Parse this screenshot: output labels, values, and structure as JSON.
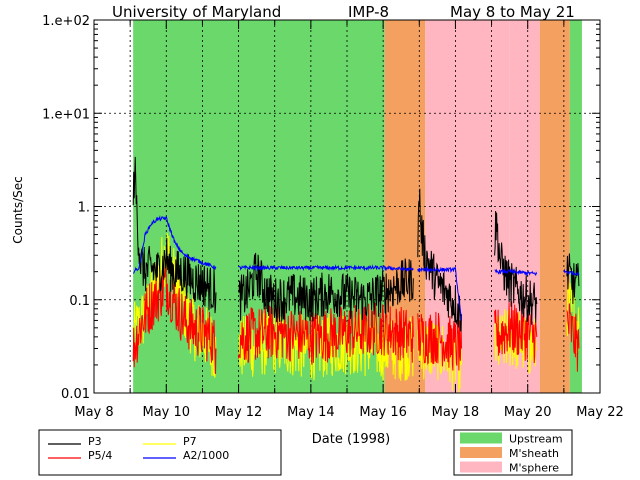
{
  "chart_data": {
    "type": "line",
    "title": {
      "left": "University of Maryland",
      "center": "IMP-8",
      "right": "May 8 to May 21"
    },
    "xlabel": "Date (1998)",
    "ylabel": "Counts/Sec",
    "y_scale": "log",
    "ylim": [
      0.01,
      100
    ],
    "y_ticks": [
      {
        "value": 100,
        "label": "1.e+02"
      },
      {
        "value": 10,
        "label": "1.e+01"
      },
      {
        "value": 1,
        "label": "1."
      },
      {
        "value": 0.1,
        "label": "0.1"
      },
      {
        "value": 0.01,
        "label": "0.01"
      }
    ],
    "xlim": [
      "1998-05-08",
      "1998-05-22"
    ],
    "x_ticks": [
      {
        "value": "1998-05-08",
        "label": "May 8"
      },
      {
        "value": "1998-05-10",
        "label": "May 10"
      },
      {
        "value": "1998-05-12",
        "label": "May 12"
      },
      {
        "value": "1998-05-14",
        "label": "May 14"
      },
      {
        "value": "1998-05-16",
        "label": "May 16"
      },
      {
        "value": "1998-05-18",
        "label": "May 18"
      },
      {
        "value": "1998-05-20",
        "label": "May 20"
      },
      {
        "value": "1998-05-22",
        "label": "May 22"
      }
    ],
    "grid": "dotted daily vertical lines and decade horizontal lines",
    "regions": [
      {
        "type": "Upstream",
        "start": "1998-05-09T02:00",
        "end": "1998-05-16T01:00"
      },
      {
        "type": "M'sheath",
        "start": "1998-05-16T01:00",
        "end": "1998-05-17T04:00"
      },
      {
        "type": "M'sphere",
        "start": "1998-05-17T04:00",
        "end": "1998-05-19T12:00"
      },
      {
        "type": "M'sphere",
        "start": "1998-05-19T12:00",
        "end": "1998-05-20T08:00"
      },
      {
        "type": "M'sheath",
        "start": "1998-05-20T08:00",
        "end": "1998-05-21T04:00"
      },
      {
        "type": "Upstream",
        "start": "1998-05-21T04:00",
        "end": "1998-05-21T12:00"
      }
    ],
    "series": [
      {
        "name": "P3",
        "color": "#000000",
        "segments": [
          [
            [
              "1998-05-09T02:00",
              1.2
            ],
            [
              "1998-05-09T03:00",
              2.6
            ],
            [
              "1998-05-09T05:00",
              0.6
            ],
            [
              "1998-05-09T07:00",
              0.25
            ],
            [
              "1998-05-09T10:00",
              0.2
            ],
            [
              "1998-05-09T14:00",
              0.22
            ],
            [
              "1998-05-09T18:00",
              0.2
            ],
            [
              "1998-05-09T22:00",
              0.24
            ],
            [
              "1998-05-10T00:00",
              0.3
            ],
            [
              "1998-05-10T02:00",
              0.22
            ],
            [
              "1998-05-10T06:00",
              0.2
            ],
            [
              "1998-05-10T12:00",
              0.19
            ],
            [
              "1998-05-10T18:00",
              0.16
            ],
            [
              "1998-05-11T00:00",
              0.15
            ],
            [
              "1998-05-11T06:00",
              0.13
            ],
            [
              "1998-05-11T09:00",
              0.12
            ]
          ],
          [
            [
              "1998-05-12T00:00",
              0.1
            ],
            [
              "1998-05-12T06:00",
              0.12
            ],
            [
              "1998-05-12T12:00",
              0.2
            ],
            [
              "1998-05-12T18:00",
              0.12
            ],
            [
              "1998-05-13T00:00",
              0.1
            ],
            [
              "1998-05-13T12:00",
              0.11
            ],
            [
              "1998-05-14T00:00",
              0.1
            ],
            [
              "1998-05-14T12:00",
              0.12
            ],
            [
              "1998-05-15T00:00",
              0.11
            ],
            [
              "1998-05-15T12:00",
              0.1
            ],
            [
              "1998-05-16T00:00",
              0.12
            ],
            [
              "1998-05-16T12:00",
              0.15
            ],
            [
              "1998-05-16T20:00",
              0.17
            ]
          ],
          [
            [
              "1998-05-16T23:00",
              0.3
            ],
            [
              "1998-05-17T00:00",
              1.6
            ],
            [
              "1998-05-17T01:00",
              0.6
            ],
            [
              "1998-05-17T04:00",
              0.3
            ],
            [
              "1998-05-17T12:00",
              0.15
            ],
            [
              "1998-05-17T18:00",
              0.12
            ],
            [
              "1998-05-18T00:00",
              0.09
            ],
            [
              "1998-05-18T04:00",
              0.07
            ]
          ],
          [
            [
              "1998-05-19T02:00",
              0.4
            ],
            [
              "1998-05-19T03:00",
              0.7
            ],
            [
              "1998-05-19T06:00",
              0.25
            ],
            [
              "1998-05-19T12:00",
              0.15
            ],
            [
              "1998-05-19T18:00",
              0.12
            ],
            [
              "1998-05-20T00:00",
              0.1
            ],
            [
              "1998-05-20T06:00",
              0.09
            ]
          ],
          [
            [
              "1998-05-21T02:00",
              0.2
            ],
            [
              "1998-05-21T06:00",
              0.15
            ],
            [
              "1998-05-21T10:00",
              0.14
            ]
          ]
        ]
      },
      {
        "name": "P5/4",
        "color": "#ff0000",
        "segments": [
          [
            [
              "1998-05-09T02:00",
              0.03
            ],
            [
              "1998-05-09T08:00",
              0.06
            ],
            [
              "1998-05-09T14:00",
              0.09
            ],
            [
              "1998-05-09T20:00",
              0.12
            ],
            [
              "1998-05-10T00:00",
              0.15
            ],
            [
              "1998-05-10T06:00",
              0.09
            ],
            [
              "1998-05-10T12:00",
              0.06
            ],
            [
              "1998-05-10T18:00",
              0.05
            ],
            [
              "1998-05-11T06:00",
              0.04
            ],
            [
              "1998-05-11T09:00",
              0.03
            ]
          ],
          [
            [
              "1998-05-12T00:00",
              0.04
            ],
            [
              "1998-05-13T00:00",
              0.045
            ],
            [
              "1998-05-14T00:00",
              0.04
            ],
            [
              "1998-05-15T00:00",
              0.045
            ],
            [
              "1998-05-16T00:00",
              0.05
            ],
            [
              "1998-05-16T20:00",
              0.04
            ]
          ],
          [
            [
              "1998-05-16T23:00",
              0.04
            ],
            [
              "1998-05-17T12:00",
              0.04
            ],
            [
              "1998-05-18T04:00",
              0.03
            ]
          ],
          [
            [
              "1998-05-19T02:00",
              0.04
            ],
            [
              "1998-05-19T12:00",
              0.05
            ],
            [
              "1998-05-20T06:00",
              0.04
            ]
          ],
          [
            [
              "1998-05-21T02:00",
              0.06
            ],
            [
              "1998-05-21T10:00",
              0.03
            ]
          ]
        ]
      },
      {
        "name": "P7",
        "color": "#ffff00",
        "segments": [
          [
            [
              "1998-05-09T02:00",
              0.04
            ],
            [
              "1998-05-09T08:00",
              0.06
            ],
            [
              "1998-05-09T14:00",
              0.1
            ],
            [
              "1998-05-09T20:00",
              0.2
            ],
            [
              "1998-05-10T00:00",
              0.35
            ],
            [
              "1998-05-10T06:00",
              0.15
            ],
            [
              "1998-05-10T12:00",
              0.08
            ],
            [
              "1998-05-10T18:00",
              0.05
            ],
            [
              "1998-05-11T06:00",
              0.035
            ],
            [
              "1998-05-11T09:00",
              0.025
            ]
          ],
          [
            [
              "1998-05-12T00:00",
              0.03
            ],
            [
              "1998-05-13T00:00",
              0.035
            ],
            [
              "1998-05-14T00:00",
              0.03
            ],
            [
              "1998-05-15T00:00",
              0.035
            ],
            [
              "1998-05-16T00:00",
              0.03
            ],
            [
              "1998-05-16T20:00",
              0.03
            ]
          ],
          [
            [
              "1998-05-16T23:00",
              0.03
            ],
            [
              "1998-05-17T12:00",
              0.03
            ],
            [
              "1998-05-18T04:00",
              0.02
            ]
          ],
          [
            [
              "1998-05-19T02:00",
              0.03
            ],
            [
              "1998-05-19T12:00",
              0.04
            ],
            [
              "1998-05-20T06:00",
              0.03
            ]
          ],
          [
            [
              "1998-05-21T02:00",
              0.09
            ],
            [
              "1998-05-21T10:00",
              0.05
            ]
          ]
        ]
      },
      {
        "name": "A2/1000",
        "color": "#0000ff",
        "segments": [
          [
            [
              "1998-05-09T02:00",
              0.2
            ],
            [
              "1998-05-09T06:00",
              0.22
            ],
            [
              "1998-05-09T10:00",
              0.5
            ],
            [
              "1998-05-09T14:00",
              0.65
            ],
            [
              "1998-05-09T18:00",
              0.73
            ],
            [
              "1998-05-10T00:00",
              0.75
            ],
            [
              "1998-05-10T02:00",
              0.6
            ],
            [
              "1998-05-10T06:00",
              0.4
            ],
            [
              "1998-05-10T12:00",
              0.3
            ],
            [
              "1998-05-11T00:00",
              0.25
            ],
            [
              "1998-05-11T09:00",
              0.22
            ]
          ],
          [
            [
              "1998-05-12T00:00",
              0.22
            ],
            [
              "1998-05-14T00:00",
              0.22
            ],
            [
              "1998-05-16T00:00",
              0.22
            ],
            [
              "1998-05-16T20:00",
              0.21
            ]
          ],
          [
            [
              "1998-05-16T23:00",
              0.21
            ],
            [
              "1998-05-17T12:00",
              0.21
            ],
            [
              "1998-05-18T00:00",
              0.21
            ],
            [
              "1998-05-18T04:00",
              0.06
            ]
          ],
          [
            [
              "1998-05-19T02:00",
              0.2
            ],
            [
              "1998-05-19T12:00",
              0.2
            ],
            [
              "1998-05-20T06:00",
              0.19
            ]
          ],
          [
            [
              "1998-05-21T00:00",
              0.2
            ],
            [
              "1998-05-21T10:00",
              0.19
            ]
          ]
        ]
      }
    ],
    "legend": {
      "lines": [
        {
          "label": "P3",
          "color": "#000000"
        },
        {
          "label": "P7",
          "color": "#ffff00"
        },
        {
          "label": "P5/4",
          "color": "#ff0000"
        },
        {
          "label": "A2/1000",
          "color": "#0000ff"
        }
      ],
      "regions": [
        {
          "label": "Upstream",
          "color": "#6ad86a"
        },
        {
          "label": "M'sheath",
          "color": "#f4a060"
        },
        {
          "label": "M'sphere",
          "color": "#ffb6c1"
        }
      ]
    },
    "region_colors": {
      "Upstream": "#6ad86a",
      "M'sheath": "#f4a060",
      "M'sphere": "#ffb6c1"
    }
  }
}
